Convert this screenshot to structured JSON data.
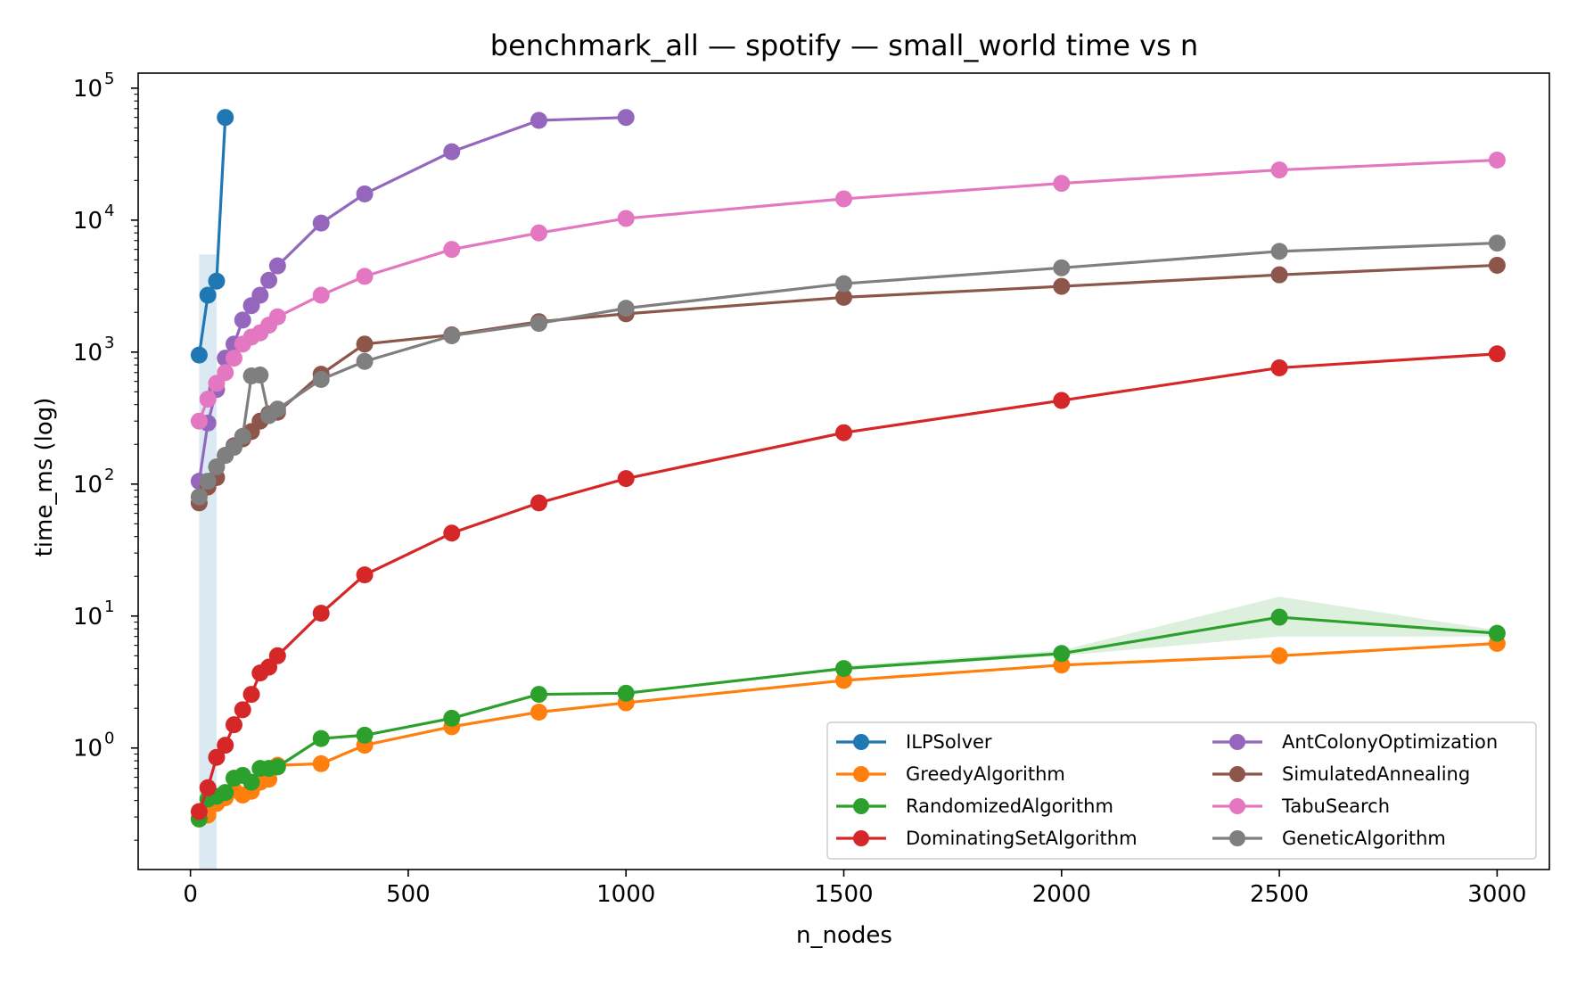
{
  "chart_data": {
    "type": "line",
    "title": "benchmark_all — spotify — small_world time vs n",
    "xlabel": "n_nodes",
    "ylabel": "time_ms (log)",
    "xlim": [
      -120,
      3120
    ],
    "ylim": [
      0.12,
      130000
    ],
    "yscale": "log",
    "x_ticks": [
      0,
      500,
      1000,
      1500,
      2000,
      2500,
      3000
    ],
    "x_tick_labels": [
      "0",
      "500",
      "1000",
      "1500",
      "2000",
      "2500",
      "3000"
    ],
    "y_ticks": [
      1,
      10,
      100,
      1000,
      10000,
      100000
    ],
    "y_tick_labels": [
      "10",
      "10",
      "10",
      "10",
      "10",
      "10"
    ],
    "y_tick_exponents": [
      "0",
      "1",
      "2",
      "3",
      "4",
      "5"
    ],
    "grid": false,
    "legend_placement": "lower-right",
    "series": [
      {
        "name": "ILPSolver",
        "color": "#1f77b4",
        "x": [
          20,
          40,
          60,
          80
        ],
        "y": [
          950,
          2700,
          3450,
          60000
        ],
        "band": {
          "x": [
            20,
            60
          ],
          "lower": [
            0.12,
            0.12
          ],
          "upper": [
            5500,
            5500
          ]
        }
      },
      {
        "name": "GreedyAlgorithm",
        "color": "#ff7f0e",
        "x": [
          20,
          40,
          60,
          80,
          100,
          120,
          140,
          160,
          180,
          200,
          300,
          400,
          600,
          800,
          1000,
          1500,
          2000,
          2500,
          3000
        ],
        "y": [
          0.29,
          0.31,
          0.38,
          0.42,
          0.48,
          0.44,
          0.47,
          0.55,
          0.58,
          0.74,
          0.76,
          1.05,
          1.45,
          1.87,
          2.2,
          3.25,
          4.25,
          5.0,
          6.2
        ]
      },
      {
        "name": "RandomizedAlgorithm",
        "color": "#2ca02c",
        "x": [
          20,
          40,
          60,
          80,
          100,
          120,
          140,
          160,
          180,
          200,
          300,
          400,
          600,
          800,
          1000,
          1500,
          2000,
          2500,
          3000
        ],
        "y": [
          0.29,
          0.41,
          0.43,
          0.46,
          0.59,
          0.62,
          0.55,
          0.7,
          0.7,
          0.72,
          1.18,
          1.25,
          1.68,
          2.55,
          2.6,
          4.0,
          5.2,
          9.8,
          7.4
        ],
        "band": {
          "x": [
            1500,
            2000,
            2500,
            3000
          ],
          "lower": [
            3.9,
            5.0,
            7.0,
            7.0
          ],
          "upper": [
            4.2,
            5.5,
            14.0,
            7.8
          ]
        }
      },
      {
        "name": "DominatingSetAlgorithm",
        "color": "#d62728",
        "x": [
          20,
          40,
          60,
          80,
          100,
          120,
          140,
          160,
          180,
          200,
          300,
          400,
          600,
          800,
          1000,
          1500,
          2000,
          2500,
          3000
        ],
        "y": [
          0.33,
          0.5,
          0.85,
          1.05,
          1.5,
          1.95,
          2.55,
          3.7,
          4.1,
          5.0,
          10.5,
          20.5,
          42.5,
          72.0,
          110.0,
          245.0,
          430.0,
          760.0,
          970.0
        ]
      },
      {
        "name": "AntColonyOptimization",
        "color": "#9467bd",
        "x": [
          20,
          40,
          60,
          80,
          100,
          120,
          140,
          160,
          180,
          200,
          300,
          400,
          600,
          800,
          1000
        ],
        "y": [
          105,
          290,
          520,
          900,
          1150,
          1750,
          2250,
          2700,
          3500,
          4500,
          9500,
          15800,
          33000,
          57000,
          60000
        ]
      },
      {
        "name": "SimulatedAnnealing",
        "color": "#8c564b",
        "x": [
          20,
          40,
          60,
          80,
          100,
          120,
          140,
          160,
          180,
          200,
          300,
          400,
          600,
          800,
          1000,
          1500,
          2000,
          2500,
          3000
        ],
        "y": [
          72,
          95,
          112,
          165,
          195,
          220,
          250,
          300,
          340,
          350,
          680,
          1150,
          1350,
          1700,
          1950,
          2600,
          3150,
          3850,
          4550
        ]
      },
      {
        "name": "TabuSearch",
        "color": "#e377c2",
        "x": [
          20,
          40,
          60,
          80,
          100,
          120,
          140,
          160,
          180,
          200,
          300,
          400,
          600,
          800,
          1000,
          1500,
          2000,
          2500,
          3000
        ],
        "y": [
          300,
          440,
          580,
          700,
          900,
          1150,
          1300,
          1400,
          1600,
          1850,
          2700,
          3750,
          6000,
          8000,
          10300,
          14500,
          19000,
          24000,
          28500
        ]
      },
      {
        "name": "GeneticAlgorithm",
        "color": "#7f7f7f",
        "x": [
          20,
          40,
          60,
          80,
          100,
          120,
          140,
          160,
          180,
          200,
          300,
          400,
          600,
          800,
          1000,
          1500,
          2000,
          2500,
          3000
        ],
        "y": [
          80,
          105,
          135,
          165,
          190,
          230,
          660,
          670,
          330,
          370,
          620,
          850,
          1330,
          1650,
          2150,
          3300,
          4350,
          5800,
          6700
        ]
      }
    ]
  }
}
